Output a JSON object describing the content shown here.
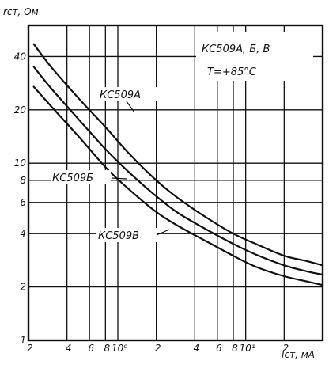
{
  "chart_data": {
    "type": "line",
    "x_scale": "log",
    "y_scale": "log",
    "xlim": [
      0.2,
      40
    ],
    "ylim": [
      1,
      60
    ],
    "grid": true,
    "ylabel": "rст, Ом",
    "xlabel": "Iст, мА",
    "annotation_lines": [
      "КС509А, Б, В",
      "T=+85°C"
    ],
    "y_ticks": [
      {
        "value": 1,
        "label": "1"
      },
      {
        "value": 2,
        "label": "2"
      },
      {
        "value": 4,
        "label": "4"
      },
      {
        "value": 6,
        "label": "6"
      },
      {
        "value": 8,
        "label": "8"
      },
      {
        "value": 10,
        "label": "10"
      },
      {
        "value": 20,
        "label": "20"
      },
      {
        "value": 40,
        "label": "40"
      }
    ],
    "x_ticks": [
      {
        "value": 0.2,
        "label": "2"
      },
      {
        "value": 0.4,
        "label": "4"
      },
      {
        "value": 0.6,
        "label": "6"
      },
      {
        "value": 0.8,
        "label": "8"
      },
      {
        "value": 1,
        "label": "10⁰"
      },
      {
        "value": 2,
        "label": "2"
      },
      {
        "value": 4,
        "label": "4"
      },
      {
        "value": 6,
        "label": "6"
      },
      {
        "value": 8,
        "label": "8"
      },
      {
        "value": 10,
        "label": "10¹"
      },
      {
        "value": 20,
        "label": "2"
      }
    ],
    "series": [
      {
        "name": "КС509А",
        "x": [
          0.22,
          0.3,
          0.5,
          0.8,
          1.2,
          2,
          3,
          5,
          8,
          12,
          20,
          30,
          40
        ],
        "y": [
          47,
          35,
          23,
          16,
          11.5,
          8,
          6.3,
          4.9,
          4.0,
          3.5,
          3.0,
          2.8,
          2.65
        ]
      },
      {
        "name": "КС509Б",
        "x": [
          0.22,
          0.3,
          0.5,
          0.8,
          1.2,
          2,
          3,
          5,
          8,
          12,
          20,
          30,
          40
        ],
        "y": [
          35,
          26.5,
          17.5,
          12,
          9,
          6.5,
          5.2,
          4.2,
          3.5,
          3.05,
          2.65,
          2.45,
          2.35
        ]
      },
      {
        "name": "КС509В",
        "x": [
          0.22,
          0.3,
          0.5,
          0.8,
          1.2,
          2,
          3,
          5,
          8,
          12,
          20,
          30,
          40
        ],
        "y": [
          27,
          21,
          14,
          9.5,
          7.2,
          5.3,
          4.4,
          3.6,
          3.0,
          2.6,
          2.3,
          2.15,
          2.05
        ]
      }
    ]
  }
}
